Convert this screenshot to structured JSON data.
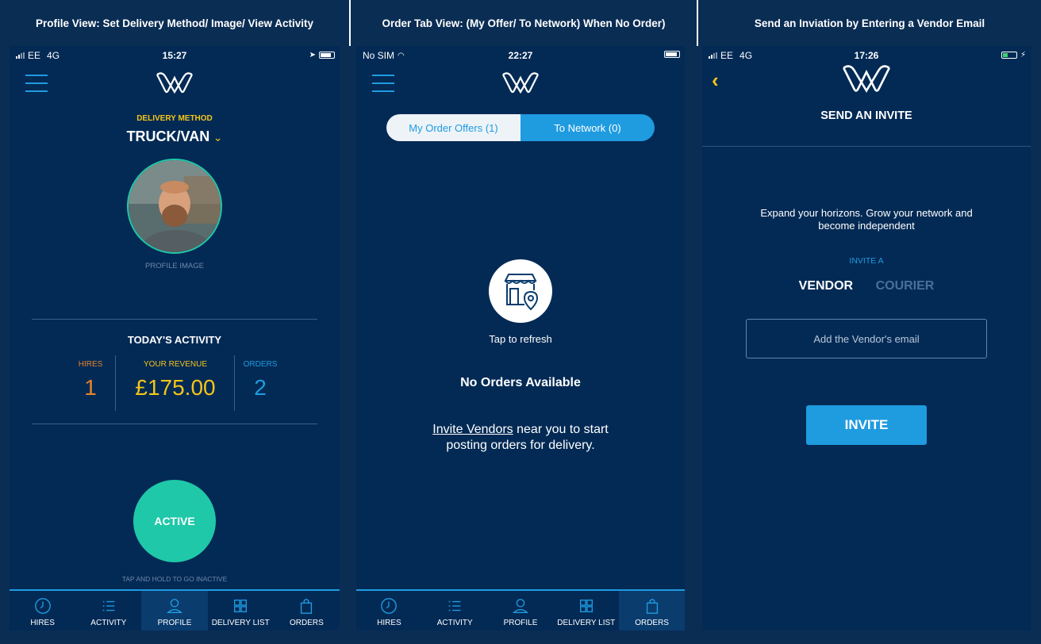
{
  "columns": [
    {
      "title": "Profile View: Set Delivery Method/ Image/ View Activity"
    },
    {
      "title": "Order Tab View: (My Offer/ To Network) When No Order)"
    },
    {
      "title": "Send an Inviation by Entering a Vendor Email"
    }
  ],
  "colors": {
    "background": "#032a55",
    "accent": "#1f9be0",
    "yellow": "#f5c518",
    "orange": "#e8832a",
    "teal": "#1fc8a8"
  },
  "profile": {
    "status": {
      "carrier": "EE",
      "network": "4G",
      "time": "15:27"
    },
    "delivery_label": "DELIVERY METHOD",
    "delivery_value": "TRUCK/VAN",
    "profile_image_label": "PROFILE IMAGE",
    "activity_title": "TODAY'S ACTIVITY",
    "hires_label": "HIRES",
    "hires_value": "1",
    "revenue_label": "YOUR REVENUE",
    "revenue_value": "£175.00",
    "orders_label": "ORDERS",
    "orders_value": "2",
    "active_label": "ACTIVE",
    "hold_hint": "TAP AND HOLD TO GO INACTIVE"
  },
  "orders": {
    "status": {
      "carrier": "No SIM",
      "time": "22:27"
    },
    "seg_offers": "My Order Offers (1)",
    "seg_network": "To Network (0)",
    "refresh": "Tap to refresh",
    "empty_title": "No Orders Available",
    "invite_link": "Invite Vendors",
    "invite_rest_1": " near you to start",
    "invite_rest_2": "posting orders for delivery."
  },
  "invite": {
    "status": {
      "carrier": "EE",
      "network": "4G",
      "time": "17:26"
    },
    "title": "SEND AN INVITE",
    "tagline_1": "Expand your horizons. Grow your network and",
    "tagline_2": "become independent",
    "invite_a": "INVITE A",
    "vendor": "VENDOR",
    "courier": "COURIER",
    "email_placeholder": "Add the Vendor's email",
    "invite_button": "INVITE"
  },
  "tabbar": {
    "hires": "HIRES",
    "activity": "ACTIVITY",
    "profile": "PROFILE",
    "delivery_list": "DELIVERY LIST",
    "orders": "ORDERS"
  }
}
